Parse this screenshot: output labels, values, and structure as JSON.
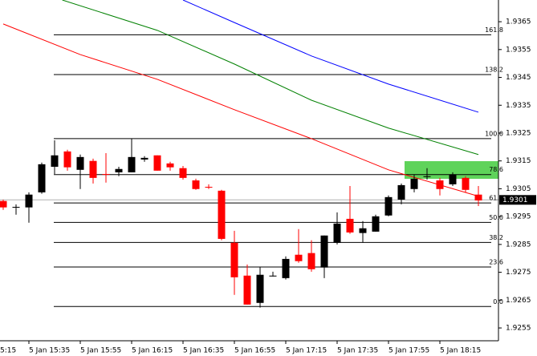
{
  "chart_data": {
    "type": "candlestick",
    "categories": [
      null,
      null,
      "5 Jan 15:35",
      null,
      null,
      null,
      "5 Jan 15:55",
      null,
      null,
      null,
      "5 Jan 16:15",
      null,
      null,
      null,
      "5 Jan 16:35",
      null,
      null,
      null,
      "5 Jan 16:55",
      null,
      null,
      null,
      "5 Jan 17:15",
      null,
      null,
      null,
      "5 Jan 17:35",
      null,
      null,
      null,
      "5 Jan 17:55",
      null,
      null,
      null,
      "5 Jan 18:15",
      null,
      null,
      null
    ],
    "x_label_clipped": "5:15",
    "open": [
      1.93006,
      1.92983,
      1.92983,
      1.93037,
      1.93129,
      1.93184,
      1.93118,
      1.9315,
      1.93103,
      1.93109,
      1.93109,
      1.93155,
      1.9317,
      1.93141,
      1.93124,
      1.9308,
      1.93057,
      1.93043,
      1.92856,
      1.92738,
      1.9264,
      1.92735,
      1.92729,
      1.92813,
      1.92819,
      1.92767,
      1.92856,
      1.92942,
      1.92891,
      1.92896,
      1.92954,
      1.93011,
      1.93049,
      1.93092,
      1.9308,
      1.93066,
      1.93089,
      1.93029
    ],
    "high": [
      1.93011,
      1.92994,
      1.93037,
      1.93144,
      1.93224,
      1.9319,
      1.93173,
      1.93158,
      1.93178,
      1.93129,
      1.9323,
      1.93167,
      1.9317,
      1.93147,
      1.93132,
      1.93086,
      1.93066,
      1.93046,
      1.92899,
      1.92778,
      1.9277,
      1.92752,
      1.92807,
      1.92905,
      1.92865,
      1.92882,
      1.92965,
      1.9306,
      1.92934,
      1.92957,
      1.93026,
      1.93069,
      1.93101,
      1.93124,
      1.93089,
      1.93109,
      1.93095,
      1.9306
    ],
    "low": [
      1.92974,
      1.92957,
      1.92928,
      1.93032,
      1.93103,
      1.93115,
      1.93049,
      1.93069,
      1.93072,
      1.93095,
      1.93109,
      1.93147,
      1.93115,
      1.93115,
      1.93083,
      1.93046,
      1.93049,
      1.92865,
      1.92669,
      1.92634,
      1.92623,
      1.92735,
      1.92724,
      1.92784,
      1.92752,
      1.92729,
      1.9285,
      1.92888,
      1.92856,
      1.92896,
      1.92951,
      1.92994,
      1.93037,
      1.93083,
      1.93026,
      1.9306,
      1.93037,
      1.92988
    ],
    "close": [
      1.92983,
      1.92985,
      1.93029,
      1.93138,
      1.9317,
      1.93127,
      1.93164,
      1.93089,
      1.93101,
      1.93121,
      1.93164,
      1.93161,
      1.93115,
      1.93127,
      1.93089,
      1.93049,
      1.93055,
      1.9287,
      1.92732,
      1.92634,
      1.92741,
      1.92738,
      1.92798,
      1.9279,
      1.92761,
      1.92882,
      1.92925,
      1.92893,
      1.92908,
      1.92951,
      1.9302,
      1.93063,
      1.93086,
      1.93095,
      1.93049,
      1.93101,
      1.93046,
      1.93008
    ],
    "up_color": "#000000",
    "down_color": "#ff0000",
    "moving_averages": [
      {
        "color": "#ff0000",
        "x": [
          0,
          6,
          12,
          18,
          24,
          30,
          37
        ],
        "values": [
          1.93642,
          1.93532,
          1.93443,
          1.93334,
          1.9323,
          1.93118,
          1.93023
        ]
      },
      {
        "color": "#008000",
        "x": [
          4.6,
          12,
          18,
          24,
          30,
          37
        ],
        "values": [
          1.93728,
          1.93619,
          1.93498,
          1.93368,
          1.93268,
          1.93173
        ]
      },
      {
        "color": "#0000ff",
        "x": [
          14,
          18,
          24,
          30,
          37
        ],
        "values": [
          1.93728,
          1.93647,
          1.93527,
          1.93426,
          1.93325
        ]
      }
    ],
    "fib_levels": [
      {
        "value": 1.92627,
        "label": "0.0"
      },
      {
        "value": 1.92769,
        "label": "23.6"
      },
      {
        "value": 1.92857,
        "label": "38.2"
      },
      {
        "value": 1.92929,
        "label": "50.0"
      },
      {
        "value": 1.92999,
        "label": "61.8"
      },
      {
        "value": 1.93101,
        "label": "78.6"
      },
      {
        "value": 1.9323,
        "label": "100.0"
      },
      {
        "value": 1.9346,
        "label": "138.2"
      },
      {
        "value": 1.93603,
        "label": "161.8"
      }
    ],
    "current_price": 1.9301,
    "ylim": [
      1.92504,
      1.93728
    ],
    "yticks": [
      1.9255,
      1.9265,
      1.9275,
      1.9285,
      1.9295,
      1.9305,
      1.9315,
      1.9325,
      1.9335,
      1.9345,
      1.9355,
      1.9365
    ]
  }
}
